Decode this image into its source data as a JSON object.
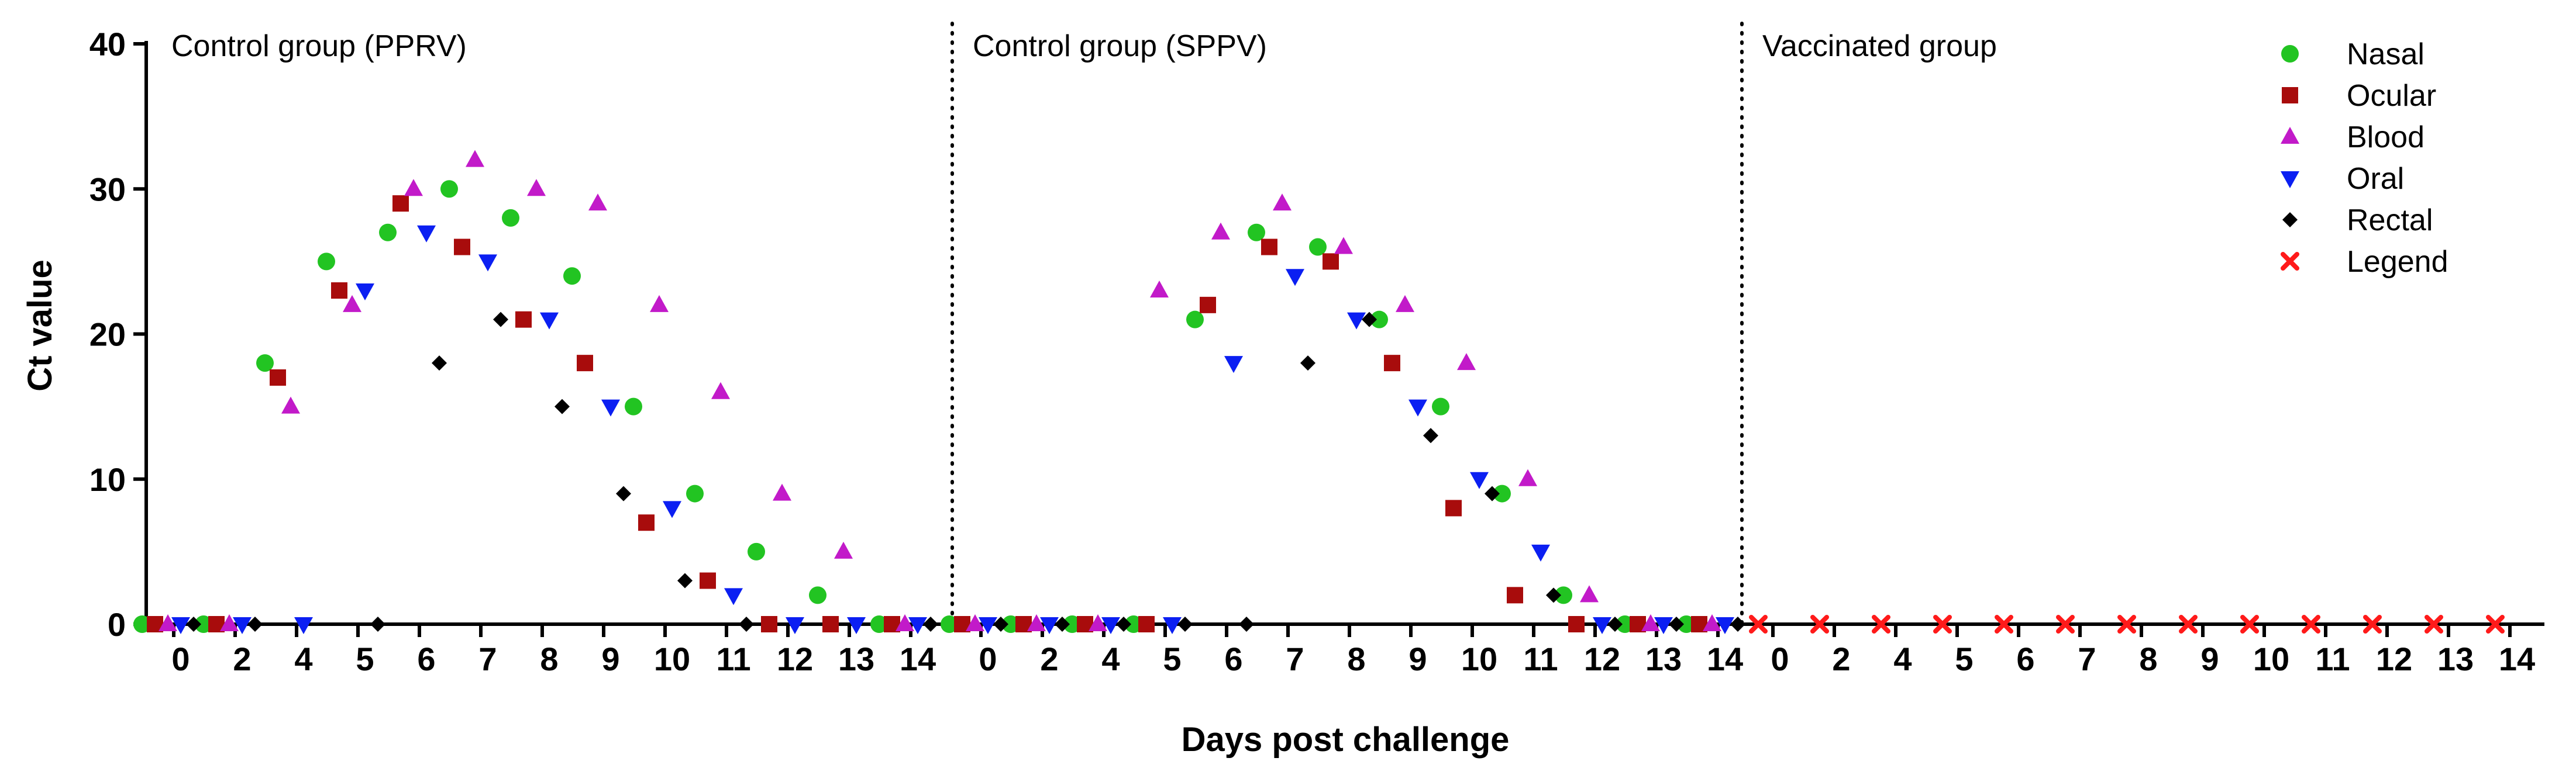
{
  "chart_data": {
    "type": "scatter",
    "ylabel": "Ct value",
    "xlabel": "Days post challenge",
    "ylim": [
      0,
      40
    ],
    "yticks": [
      0,
      10,
      20,
      30,
      40
    ],
    "grid": false,
    "legend_position": "top-right",
    "panels": [
      {
        "title": "Control group (PPRV)",
        "categories": [
          "0",
          "2",
          "4",
          "5",
          "6",
          "7",
          "8",
          "9",
          "10",
          "11",
          "12",
          "13",
          "14"
        ],
        "series": [
          {
            "name": "Nasal",
            "values": [
              0,
              0,
              18,
              25,
              27,
              30,
              28,
              24,
              15,
              9,
              5,
              2,
              0
            ]
          },
          {
            "name": "Ocular",
            "values": [
              0,
              0,
              17,
              23,
              29,
              26,
              21,
              18,
              7,
              3,
              0,
              0,
              0
            ]
          },
          {
            "name": "Blood",
            "values": [
              0,
              0,
              15,
              22,
              30,
              32,
              30,
              29,
              22,
              16,
              9,
              5,
              0
            ]
          },
          {
            "name": "Oral",
            "values": [
              0,
              0,
              0,
              23,
              27,
              25,
              21,
              15,
              8,
              2,
              0,
              0,
              0
            ]
          },
          {
            "name": "Rectal",
            "values": [
              0,
              0,
              null,
              0,
              18,
              21,
              15,
              9,
              3,
              0,
              null,
              null,
              0
            ]
          }
        ]
      },
      {
        "title": "Control group (SPPV)",
        "categories": [
          "0",
          "2",
          "4",
          "5",
          "6",
          "7",
          "8",
          "9",
          "10",
          "11",
          "12",
          "13",
          "14"
        ],
        "series": [
          {
            "name": "Nasal",
            "values": [
              0,
              0,
              0,
              0,
              21,
              27,
              26,
              21,
              15,
              9,
              2,
              0,
              0
            ]
          },
          {
            "name": "Ocular",
            "values": [
              0,
              0,
              0,
              0,
              22,
              26,
              25,
              18,
              8,
              2,
              0,
              0,
              0
            ]
          },
          {
            "name": "Blood",
            "values": [
              0,
              0,
              0,
              23,
              27,
              29,
              26,
              22,
              18,
              10,
              2,
              0,
              0
            ]
          },
          {
            "name": "Oral",
            "values": [
              0,
              0,
              0,
              0,
              18,
              24,
              21,
              15,
              10,
              5,
              0,
              0,
              0
            ]
          },
          {
            "name": "Rectal",
            "values": [
              0,
              0,
              0,
              0,
              0,
              18,
              21,
              13,
              9,
              2,
              0,
              0,
              0
            ]
          }
        ]
      },
      {
        "title": "Vaccinated group",
        "categories": [
          "0",
          "2",
          "4",
          "5",
          "6",
          "7",
          "8",
          "9",
          "10",
          "11",
          "12",
          "13",
          "14"
        ],
        "series": [
          {
            "name": "Legend",
            "values": [
              0,
              0,
              0,
              0,
              0,
              0,
              0,
              0,
              0,
              0,
              0,
              0,
              0
            ]
          }
        ]
      }
    ],
    "legend": [
      {
        "name": "Nasal",
        "marker": "circle",
        "color": "#22c422"
      },
      {
        "name": "Ocular",
        "marker": "square",
        "color": "#a80c0c"
      },
      {
        "name": "Blood",
        "marker": "triangle-up",
        "color": "#c21ac9"
      },
      {
        "name": "Oral",
        "marker": "triangle-down",
        "color": "#0b1ff2"
      },
      {
        "name": "Rectal",
        "marker": "diamond",
        "color": "#000000"
      },
      {
        "name": "Legend",
        "marker": "cross",
        "color": "#ff1a1a"
      }
    ]
  }
}
